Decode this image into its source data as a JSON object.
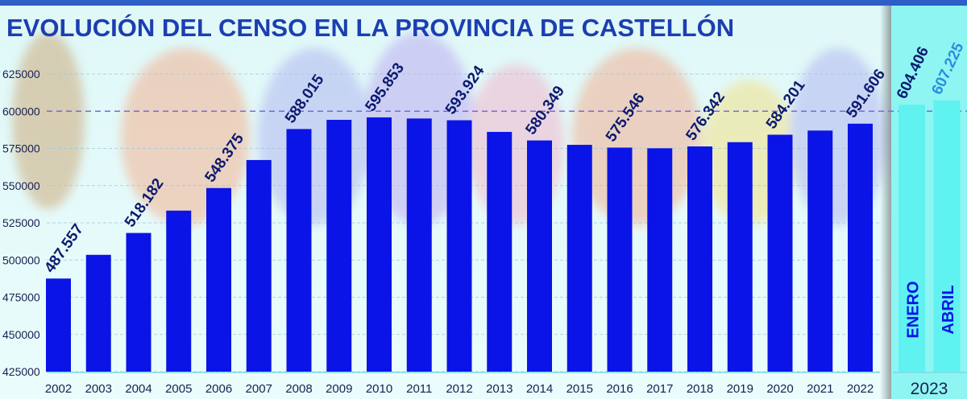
{
  "chart_data": {
    "type": "bar",
    "title": "EVOLUCIÓN DEL CENSO EN LA PROVINCIA DE CASTELLÓN",
    "xlabel": "",
    "ylabel": "",
    "ylim": [
      425000,
      635000
    ],
    "yticks": [
      "425000",
      "450000",
      "475000",
      "500000",
      "525000",
      "550000",
      "575000",
      "600000",
      "625000"
    ],
    "grid": true,
    "reference_line": 600000,
    "categories": [
      "2002",
      "2003",
      "2004",
      "2005",
      "2006",
      "2007",
      "2008",
      "2009",
      "2010",
      "2011",
      "2012",
      "2013",
      "2014",
      "2015",
      "2016",
      "2017",
      "2018",
      "2019",
      "2020",
      "2021",
      "2022"
    ],
    "values": [
      487557,
      503500,
      518182,
      533200,
      548375,
      567200,
      588015,
      594200,
      595853,
      595100,
      593924,
      586100,
      580349,
      577400,
      575546,
      575100,
      576342,
      579200,
      584201,
      587000,
      591606
    ],
    "data_labels": [
      "487.557",
      "",
      "518.182",
      "",
      "548.375",
      "",
      "588.015",
      "",
      "595.853",
      "",
      "593.924",
      "",
      "580.349",
      "",
      "575.546",
      "",
      "576.342",
      "",
      "584.201",
      "",
      "591.606"
    ],
    "extra_group": {
      "label": "2023",
      "bars": [
        {
          "name": "ENERO",
          "value": 604406,
          "data_label": "604.406",
          "label_color": "#0a1a6e"
        },
        {
          "name": "ABRIL",
          "value": 607225,
          "data_label": "607.225",
          "label_color": "#2a8de0"
        }
      ]
    },
    "colors": {
      "bar": "#0a14e6",
      "extra_bar": "#5ff2f0",
      "extra_panel": "#8ef5f2",
      "title": "#1b3fb0",
      "label": "#0a1a6e",
      "ref_line": "#7a6ad8"
    }
  }
}
